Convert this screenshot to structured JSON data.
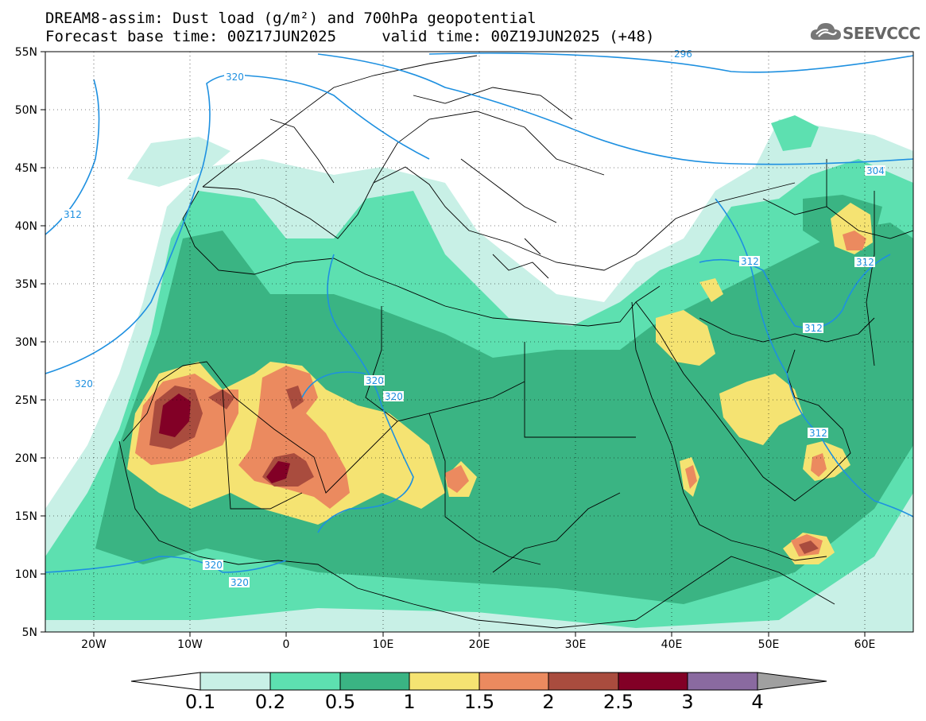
{
  "title": {
    "line1": "DREAM8-assim: Dust load (g/m²) and 700hPa geopotential",
    "line2": "Forecast base time: 00Z17JUN2025     valid time: 00Z19JUN2025 (+48)"
  },
  "logo": {
    "text": "SEEVCCC",
    "icon": "cloud-icon"
  },
  "axes": {
    "lon_labels": [
      "20W",
      "10W",
      "0",
      "10E",
      "20E",
      "30E",
      "40E",
      "50E",
      "60E"
    ],
    "lat_labels": [
      "55N",
      "50N",
      "45N",
      "40N",
      "35N",
      "30N",
      "25N",
      "20N",
      "15N",
      "10N",
      "5N"
    ]
  },
  "contours": {
    "geopotential_labels": [
      "296",
      "304",
      "312",
      "320"
    ]
  },
  "colorbar": {
    "levels": [
      "0.1",
      "0.2",
      "0.5",
      "1",
      "1.5",
      "2",
      "2.5",
      "3",
      "4"
    ],
    "colors": [
      "#c8f0e6",
      "#5de0b0",
      "#3ab483",
      "#f5e372",
      "#eb8a5f",
      "#a94c3e",
      "#820026",
      "#8a6aa0"
    ],
    "under_color": "#ffffff",
    "over_color": "#a0a0a0"
  },
  "style": {
    "land_border_color": "#000000",
    "contour_color": "#1e90e0"
  }
}
